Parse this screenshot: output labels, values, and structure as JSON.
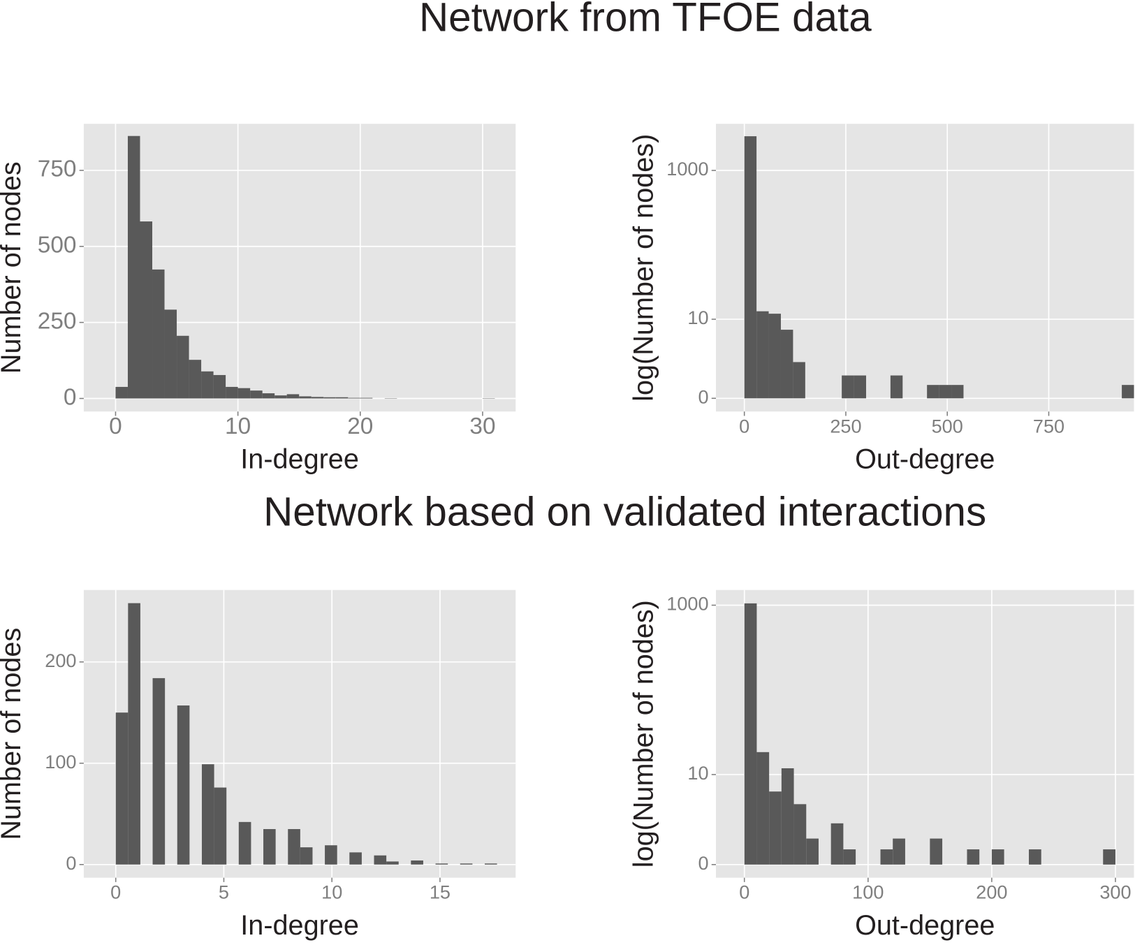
{
  "headings": [
    "Network from TFOE data",
    "Network based on validated interactions"
  ],
  "chart_data": [
    {
      "type": "histogram",
      "xlabel": "In-degree",
      "ylabel": "Number of nodes",
      "color": "#595959",
      "grid": true,
      "ylog": false,
      "bins": [
        0,
        1,
        2,
        3,
        4,
        5,
        6,
        7,
        8,
        9,
        10,
        11,
        12,
        13,
        14,
        15,
        16,
        17,
        18,
        19,
        20,
        21,
        22,
        23,
        24,
        25,
        26,
        27,
        28,
        29,
        30,
        31
      ],
      "values": [
        38,
        863,
        582,
        424,
        292,
        206,
        127,
        89,
        77,
        38,
        34,
        26,
        17,
        10,
        14,
        7,
        5,
        4,
        4,
        2,
        2,
        0,
        1,
        0,
        0,
        0,
        0,
        0,
        0,
        0,
        1
      ],
      "xlim": [
        -2.6,
        32.7
      ],
      "ylim": [
        -43,
        903
      ],
      "xticks": [
        0,
        10,
        20,
        30
      ],
      "yticks": [
        0,
        250,
        500,
        750
      ]
    },
    {
      "type": "histogram",
      "xlabel": "Out-degree",
      "ylabel": "log(Number of nodes)",
      "color": "#595959",
      "grid": true,
      "ylog": true,
      "bins": [
        0,
        30,
        60,
        90,
        120,
        150,
        180,
        210,
        240,
        270,
        300,
        330,
        360,
        390,
        420,
        450,
        480,
        510,
        540,
        570,
        600,
        630,
        660,
        690,
        720,
        750,
        780,
        810,
        840,
        870,
        900,
        930,
        960
      ],
      "values": [
        2820,
        13,
        12,
        7,
        2,
        0,
        0,
        0,
        1,
        1,
        0,
        0,
        1,
        0,
        0,
        0.5,
        0.5,
        0.5,
        0,
        0,
        0,
        0,
        0,
        0,
        0,
        0,
        0,
        0,
        0,
        0,
        0,
        0.5
      ],
      "xlim": [
        -70,
        960
      ],
      "ylim": [
        -0.33,
        4110
      ],
      "xticks": [
        0,
        250,
        500,
        750
      ],
      "yticks": [
        0,
        10,
        1000
      ]
    },
    {
      "type": "histogram",
      "xlabel": "In-degree",
      "ylabel": "Number of nodes",
      "color": "#595959",
      "grid": true,
      "ylog": false,
      "bins": [
        0,
        0.569,
        1.138,
        1.707,
        2.276,
        2.845,
        3.414,
        3.983,
        4.552,
        5.121,
        5.69,
        6.259,
        6.828,
        7.397,
        7.966,
        8.535,
        9.104,
        9.673,
        10.242,
        10.811,
        11.38,
        11.949,
        12.518,
        13.087,
        13.656,
        14.225,
        14.794,
        15.363,
        15.932,
        16.501,
        17.07,
        17.639
      ],
      "values": [
        150,
        258,
        0,
        184,
        0,
        157,
        0,
        99,
        76,
        0,
        42,
        0,
        35,
        0,
        35,
        17,
        0,
        19,
        0,
        12,
        0,
        9,
        3,
        0,
        4,
        0,
        1,
        0,
        1,
        0,
        1
      ],
      "xlim": [
        -1.48,
        18.5
      ],
      "ylim": [
        -13,
        271
      ],
      "xticks": [
        0,
        5,
        10,
        15
      ],
      "yticks": [
        0,
        100,
        200
      ]
    },
    {
      "type": "histogram",
      "xlabel": "Out-degree",
      "ylabel": "log(Number of nodes)",
      "color": "#595959",
      "grid": true,
      "ylog": true,
      "bins": [
        0,
        10,
        20,
        30,
        40,
        50,
        60,
        70,
        80,
        90,
        100,
        110,
        120,
        130,
        140,
        150,
        160,
        170,
        180,
        190,
        200,
        210,
        220,
        230,
        240,
        250,
        260,
        270,
        280,
        290,
        300
      ],
      "values": [
        1050,
        19,
        6,
        12,
        4,
        1,
        0,
        2,
        0.5,
        0,
        0,
        0.5,
        1,
        0,
        0,
        1,
        0,
        0,
        0.5,
        0,
        0.5,
        0,
        0,
        0.5,
        0,
        0,
        0,
        0,
        0,
        0.5
      ],
      "xlim": [
        -23,
        315
      ],
      "ylim": [
        -0.295,
        1500
      ],
      "xticks": [
        0,
        100,
        200,
        300
      ],
      "yticks": [
        0,
        10,
        1000
      ]
    }
  ]
}
